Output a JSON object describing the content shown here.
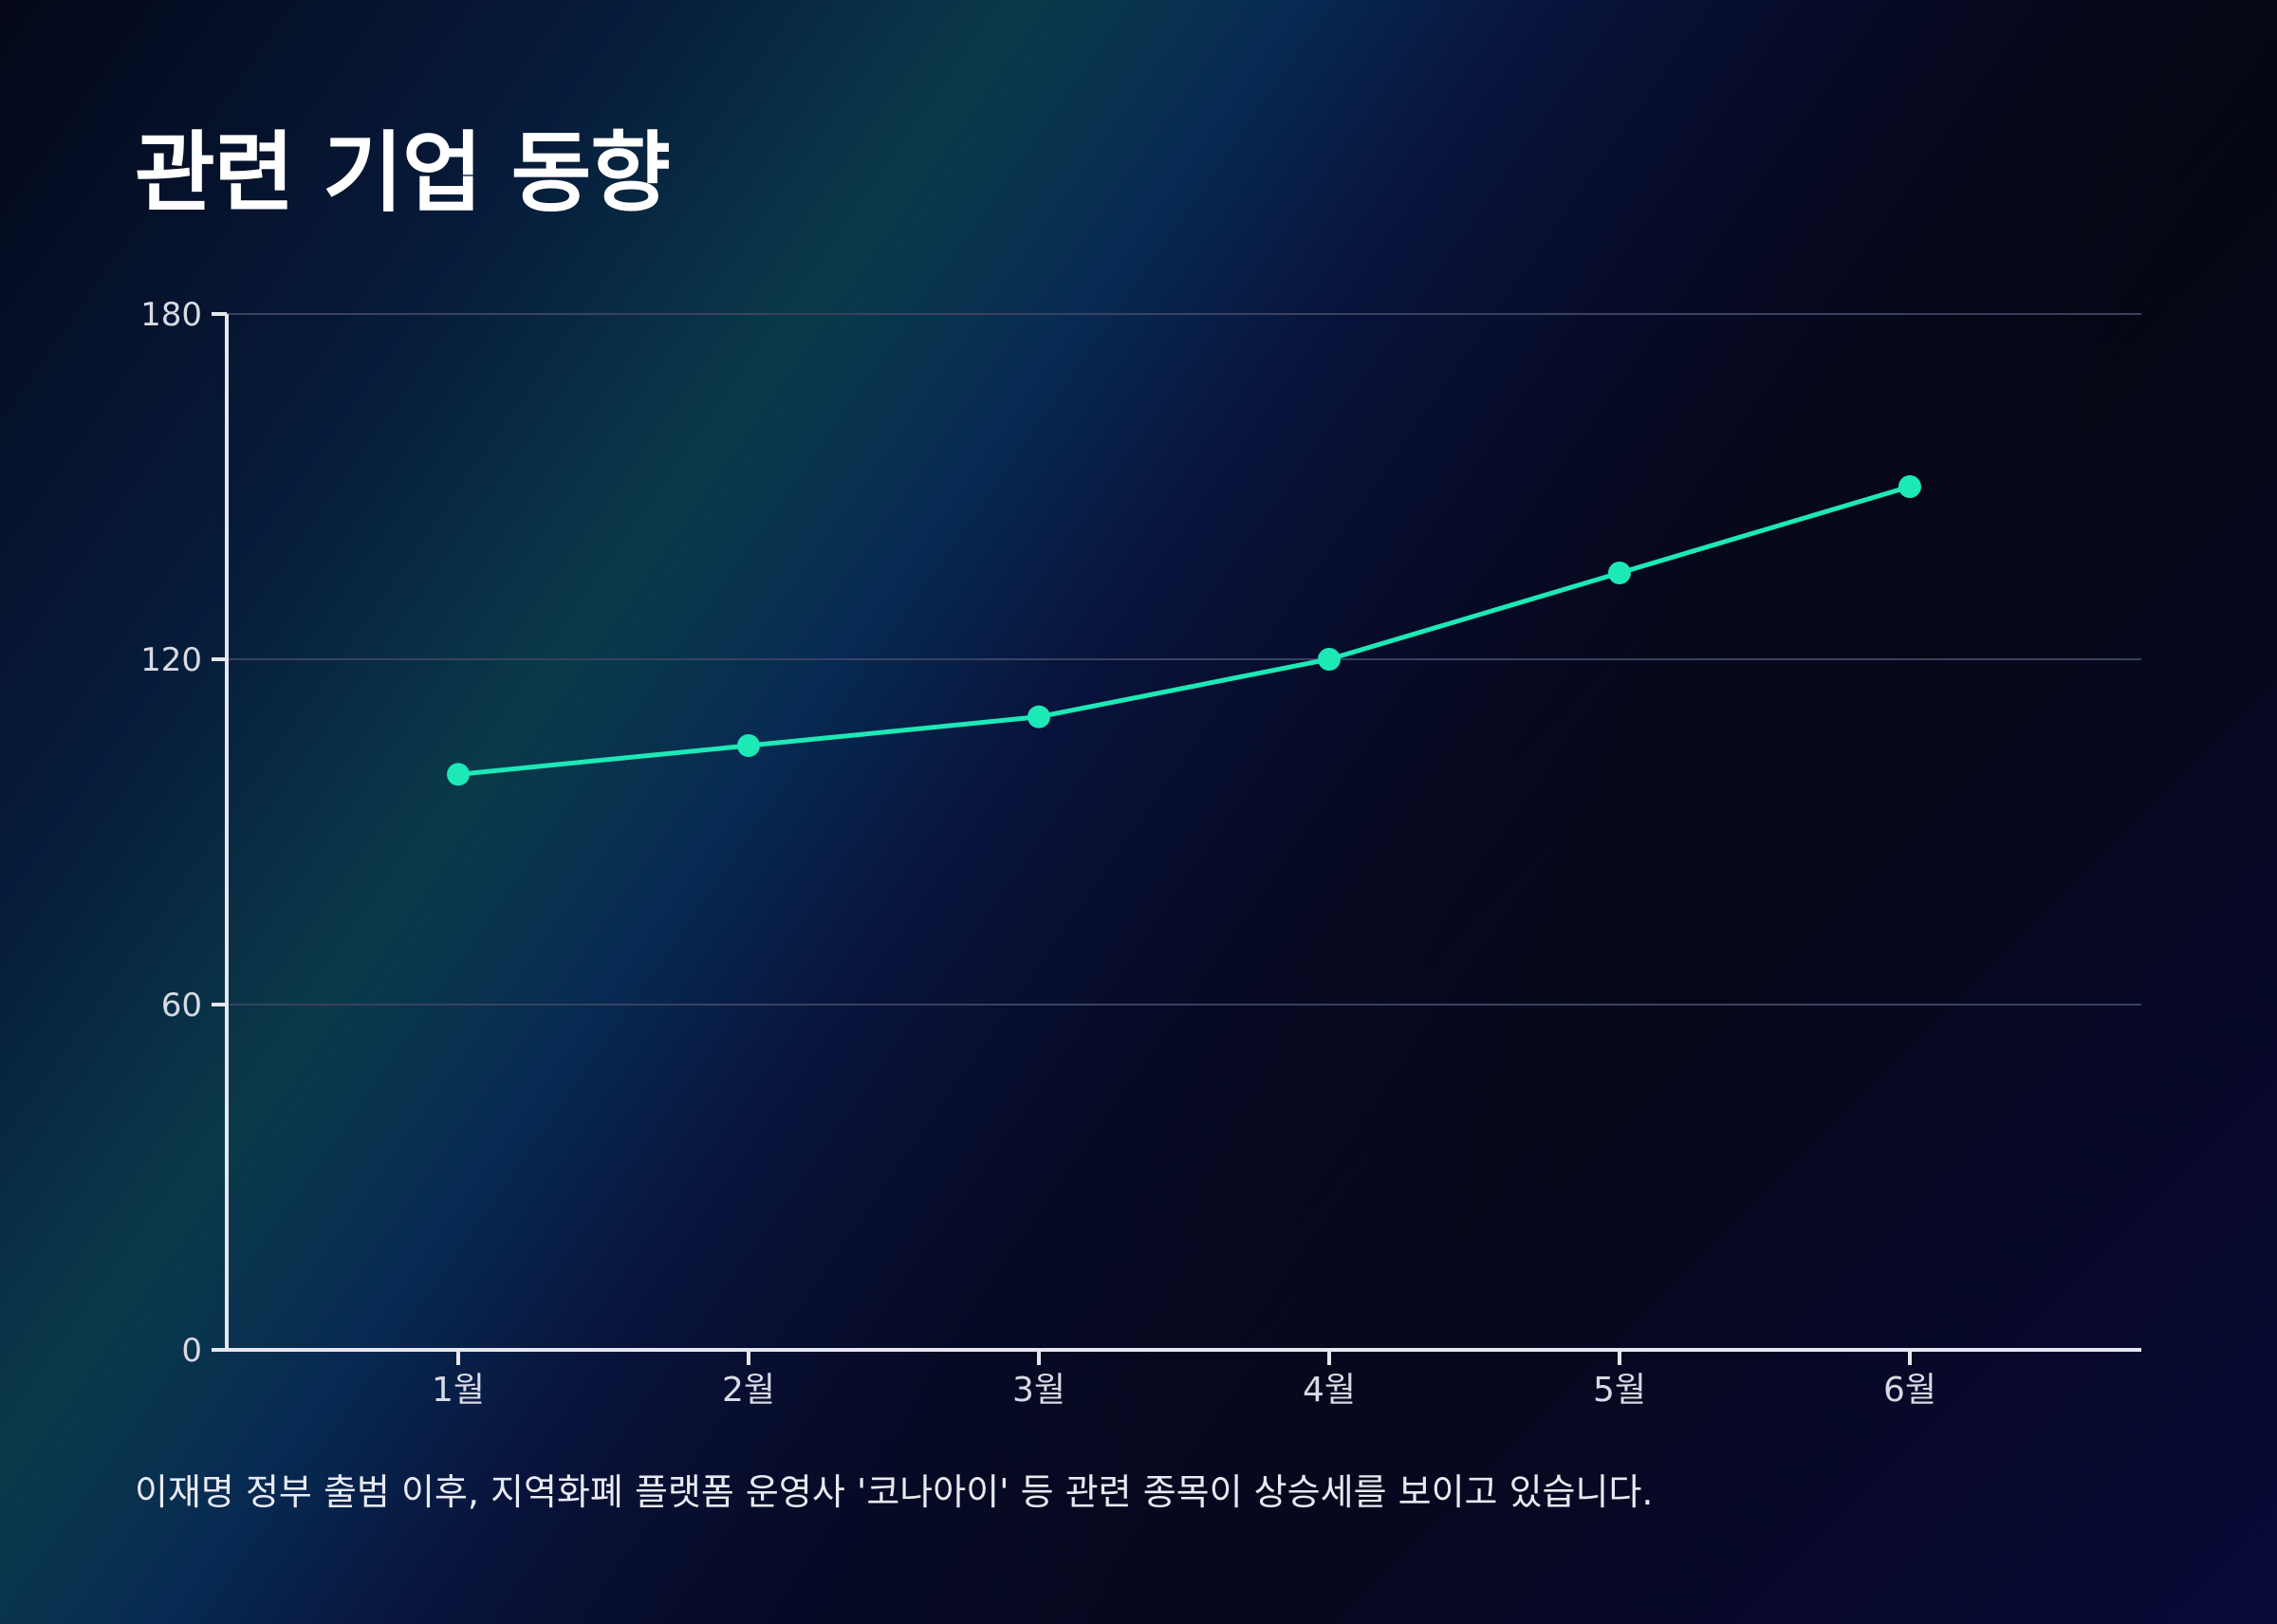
{
  "title": "관련 기업 동향",
  "caption": "이재명 정부 출범 이후, 지역화폐 플랫폼 운영사 '코나아이' 등 관련 종목이 상승세를 보이고 있습니다.",
  "colors": {
    "line": "#1de9b6",
    "axis": "#e6e6ee",
    "grid": "#3a4260",
    "tick_text": "#d8dae4"
  },
  "chart_data": {
    "type": "line",
    "title": "관련 기업 동향",
    "categories": [
      "1월",
      "2월",
      "3월",
      "4월",
      "5월",
      "6월"
    ],
    "series": [
      {
        "values": [
          100,
          105,
          110,
          120,
          135,
          150
        ]
      }
    ],
    "yticks": [
      "0",
      "60",
      "120",
      "180"
    ],
    "ylim": [
      0,
      180
    ],
    "grid": true,
    "legend": "none"
  }
}
